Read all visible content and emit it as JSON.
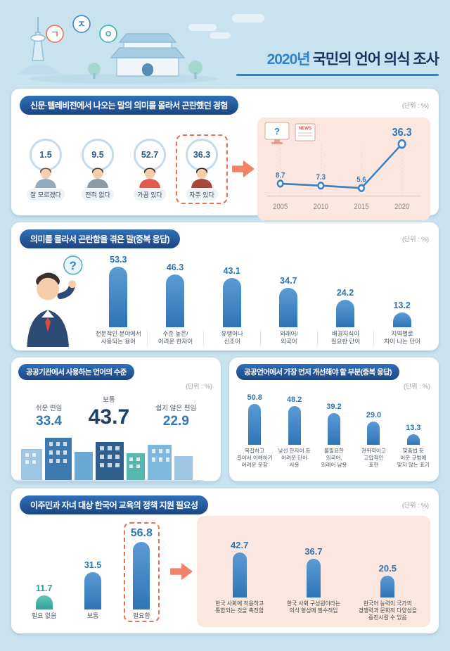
{
  "header": {
    "title_year": "2020년",
    "title_rest": "국민의 언어 의식 조사",
    "letters": [
      "ㄱ",
      "ㅈ",
      "ㅇ"
    ]
  },
  "misc": {
    "unit": "(단위 : %)",
    "question_mark": "?",
    "news": "NEWS"
  },
  "sections": {
    "s1": {
      "title": "신문·텔레비전에서 나오는 말의 의미를 몰라서 곤란했던 경험"
    },
    "s2": {
      "title": "의미를 몰라서 곤란함을 겪은 말(중복 응답)"
    },
    "s3": {
      "title": "공공기관에서 사용하는 언어의 수준"
    },
    "s4": {
      "title": "공공언어에서 가장 먼저 개선해야 할 부분(중복 응답)"
    },
    "s5": {
      "title": "이주민과 자녀 대상 한국어 교육의 정책 지원 필요성"
    }
  },
  "colors": {
    "accent_blue": "#2e75b6",
    "navy": "#1d3f66",
    "teal": "#2fa39a",
    "salmon_arrow": "#ef8468",
    "pink_box": "#fbe7e0",
    "background": "#c9e2ef"
  },
  "chart_data": [
    {
      "id": "media-word-difficulty-experience",
      "type": "pie",
      "title": "신문·텔레비전에서 나오는 말의 의미를 몰라서 곤란했던 경험",
      "unit": "%",
      "items": [
        {
          "label": "잘 모르겠다",
          "value": 1.5,
          "text": "1.5",
          "hair": "#6b5a50",
          "shirt": "#93aabc"
        },
        {
          "label": "전혀 없다",
          "value": 9.5,
          "text": "9.5",
          "hair": "#4a3f38",
          "shirt": "#8d9aa5"
        },
        {
          "label": "가끔 있다",
          "value": 52.7,
          "text": "52.7",
          "hair": "#3e332e",
          "shirt": "#e05a4e"
        },
        {
          "label": "자주 있다",
          "value": 36.3,
          "text": "36.3",
          "hair": "#2f2723",
          "shirt": "#a8473d",
          "highlight": true
        }
      ]
    },
    {
      "id": "frequent-difficulty-trend",
      "type": "line",
      "x": [
        "2005",
        "2010",
        "2015",
        "2020"
      ],
      "values": [
        8.7,
        7.3,
        5.6,
        36.3
      ],
      "value_labels": [
        "8.7",
        "7.3",
        "5.6",
        "36.3"
      ],
      "emphasis_index": 3,
      "ylim": [
        0,
        40
      ]
    },
    {
      "id": "confusing-word-types",
      "type": "bar",
      "title": "의미를 몰라서 곤란함을 겪은 말(중복 응답)",
      "unit": "%",
      "items": [
        {
          "label": "전문적인 분야에서\n사용되는 용어",
          "value": 53.3,
          "text": "53.3"
        },
        {
          "label": "수준 높은/\n어려운 한자어",
          "value": 46.3,
          "text": "46.3"
        },
        {
          "label": "유행어나\n신조어",
          "value": 43.1,
          "text": "43.1"
        },
        {
          "label": "외래어/\n외국어",
          "value": 34.7,
          "text": "34.7"
        },
        {
          "label": "배경지식이\n필요한 단어",
          "value": 24.2,
          "text": "24.2"
        },
        {
          "label": "지역별로\n차이 나는 단어",
          "value": 13.2,
          "text": "13.2"
        }
      ]
    },
    {
      "id": "public-institution-language-level",
      "type": "table",
      "title": "공공기관에서 사용하는 언어의 수준",
      "unit": "%",
      "items": [
        {
          "label": "쉬운 편임",
          "value": 33.4,
          "text": "33.4"
        },
        {
          "label": "보통",
          "value": 43.7,
          "text": "43.7",
          "big": true
        },
        {
          "label": "쉽지 않은 편임",
          "value": 22.9,
          "text": "22.9"
        }
      ]
    },
    {
      "id": "public-language-improvement-priorities",
      "type": "bar",
      "title": "공공언어에서 가장 먼저 개선해야 할 부분(중복 응답)",
      "unit": "%",
      "items": [
        {
          "label": "복잡하고\n길어서 이해하기\n어려운 문장",
          "value": 50.8,
          "text": "50.8"
        },
        {
          "label": "낯선 한자어 등\n어려운 단어\n사용",
          "value": 48.2,
          "text": "48.2"
        },
        {
          "label": "불필요한\n외국어,\n외래어 남용",
          "value": 39.2,
          "text": "39.2"
        },
        {
          "label": "권위적이고\n고압적인\n표현",
          "value": 29.0,
          "text": "29.0"
        },
        {
          "label": "맞춤법 등\n어문 규범에\n맞지 않는 표기",
          "value": 13.3,
          "text": "13.3"
        }
      ]
    },
    {
      "id": "korean-education-support-need",
      "type": "bar",
      "title": "이주민과 자녀 대상 한국어 교육의 정책 지원 필요성",
      "unit": "%",
      "items": [
        {
          "label": "필요 없음",
          "value": 11.7,
          "text": "11.7",
          "color": "teal"
        },
        {
          "label": "보통",
          "value": 31.5,
          "text": "31.5"
        },
        {
          "label": "필요함",
          "value": 56.8,
          "text": "56.8",
          "highlight": true,
          "big": true
        }
      ]
    },
    {
      "id": "education-support-reasons",
      "type": "bar",
      "unit": "%",
      "items": [
        {
          "label": "한국 사회에 적응하고\n통합되는 것을 촉진함",
          "value": 42.7,
          "text": "42.7"
        },
        {
          "label": "한국 사회 구성원이라는\n의식 형성에 필수적임",
          "value": 36.7,
          "text": "36.7"
        },
        {
          "label": "한국어 능력이 국가의\n경쟁력과 문화적 다양성을\n증진시킬 수 있음",
          "value": 20.5,
          "text": "20.5"
        }
      ]
    }
  ]
}
